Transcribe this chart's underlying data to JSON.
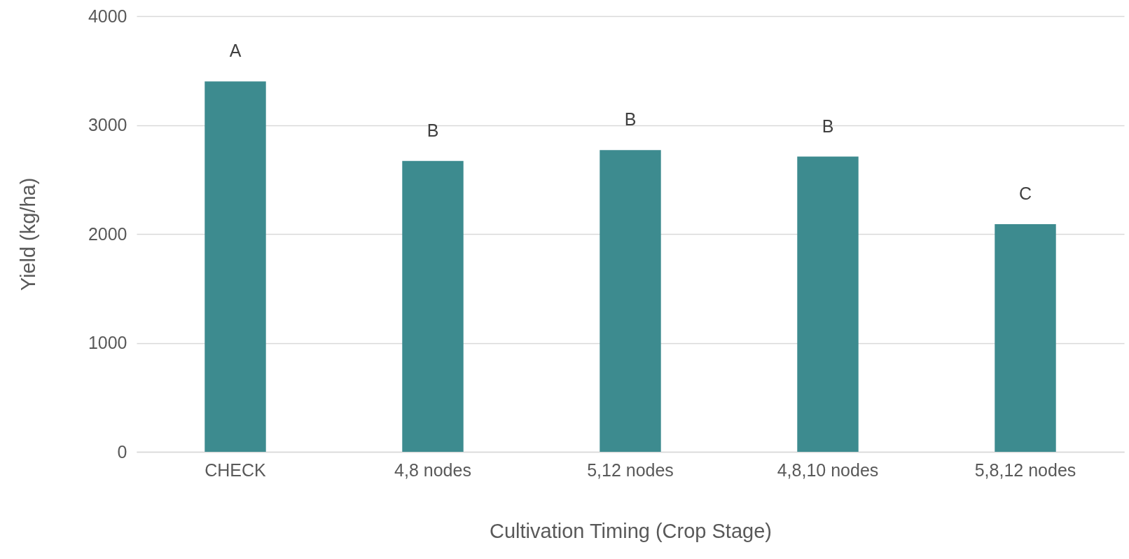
{
  "chart_data": {
    "type": "bar",
    "xlabel": "Cultivation Timing (Crop Stage)",
    "ylabel": "Yield (kg/ha)",
    "categories": [
      "CHECK",
      "4,8 nodes",
      "5,12 nodes",
      "4,8,10 nodes",
      "5,8,12 nodes"
    ],
    "values": [
      3400,
      2670,
      2770,
      2710,
      2090
    ],
    "color": "#3d8b8f",
    "ylim": [
      0,
      4000
    ],
    "yticks": [
      0,
      1000,
      2000,
      3000,
      4000
    ],
    "grid": "y",
    "annotations": [
      "A",
      "B",
      "B",
      "B",
      "C"
    ]
  }
}
